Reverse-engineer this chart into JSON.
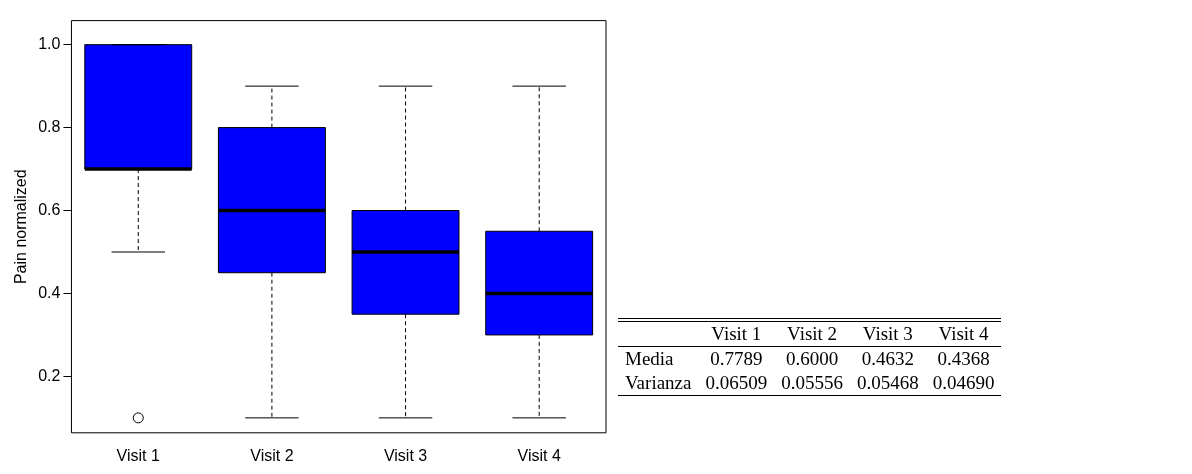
{
  "chart_data": [
    {
      "type": "box",
      "ylabel": "Pain normalized",
      "categories": [
        "Visit 1",
        "Visit 2",
        "Visit 3",
        "Visit 4"
      ],
      "color": "#0000ff",
      "marker": "circle",
      "ylim": [
        0.064,
        1.058
      ],
      "yticks": [
        0.2,
        0.4,
        0.6,
        0.8,
        {
          "value": 1.0,
          "label": "1.0"
        }
      ],
      "boxes": [
        {
          "low": 0.5,
          "q1": 0.7,
          "median": 0.7,
          "q3": 1.0,
          "high": 1.0,
          "outliers": [
            0.1
          ]
        },
        {
          "low": 0.1,
          "q1": 0.45,
          "median": 0.6,
          "q3": 0.8,
          "high": 0.9
        },
        {
          "low": 0.1,
          "q1": 0.35,
          "median": 0.5,
          "q3": 0.6,
          "high": 0.9
        },
        {
          "low": 0.1,
          "q1": 0.3,
          "median": 0.4,
          "q3": 0.55,
          "high": 0.9
        }
      ]
    },
    {
      "type": "other",
      "categories": [
        "Visit 1",
        "Visit 2",
        "Visit 3",
        "Visit 4"
      ],
      "y_categories": [
        "Media",
        "Varianza"
      ],
      "cell_labels": [
        [
          "0.7789",
          "0.6000",
          "0.4632",
          "0.4368"
        ],
        [
          "0.06509",
          "0.05556",
          "0.05468",
          "0.04690"
        ]
      ]
    }
  ]
}
